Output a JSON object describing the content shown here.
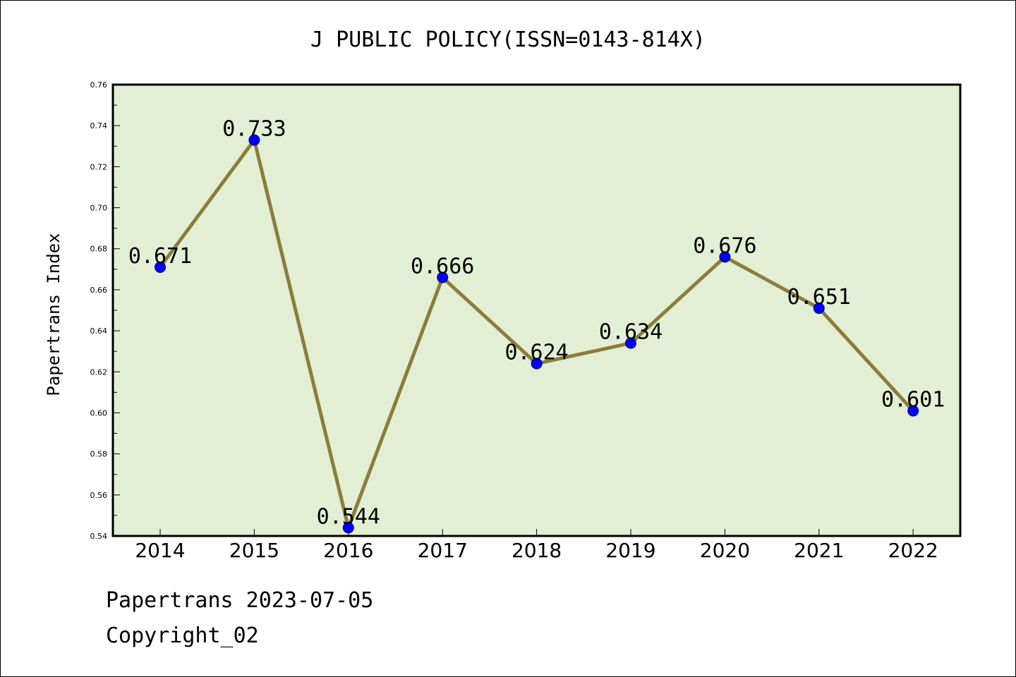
{
  "chart_data": {
    "type": "line",
    "title": "J PUBLIC POLICY(ISSN=0143-814X)",
    "xlabel": "",
    "ylabel": "Papertrans Index",
    "categories": [
      "2014",
      "2015",
      "2016",
      "2017",
      "2018",
      "2019",
      "2020",
      "2021",
      "2022"
    ],
    "series": [
      {
        "values": [
          0.671,
          0.733,
          0.544,
          0.666,
          0.624,
          0.634,
          0.676,
          0.651,
          0.601
        ],
        "labels": [
          "0.671",
          "0.733",
          "0.544",
          "0.666",
          "0.624",
          "0.634",
          "0.676",
          "0.651",
          "0.601"
        ]
      }
    ],
    "ylim": [
      0.54,
      0.76
    ],
    "yticks": [
      "0.54",
      "0.56",
      "0.58",
      "0.60",
      "0.62",
      "0.64",
      "0.66",
      "0.68",
      "0.70",
      "0.72",
      "0.74",
      "0.76"
    ],
    "grid": false,
    "colors": {
      "plot_background": "#e2efd4",
      "line": "#8b7d3a",
      "marker": "#0000ff"
    }
  },
  "footer": {
    "line1": "Papertrans 2023-07-05",
    "line2": "Copyright_02"
  }
}
